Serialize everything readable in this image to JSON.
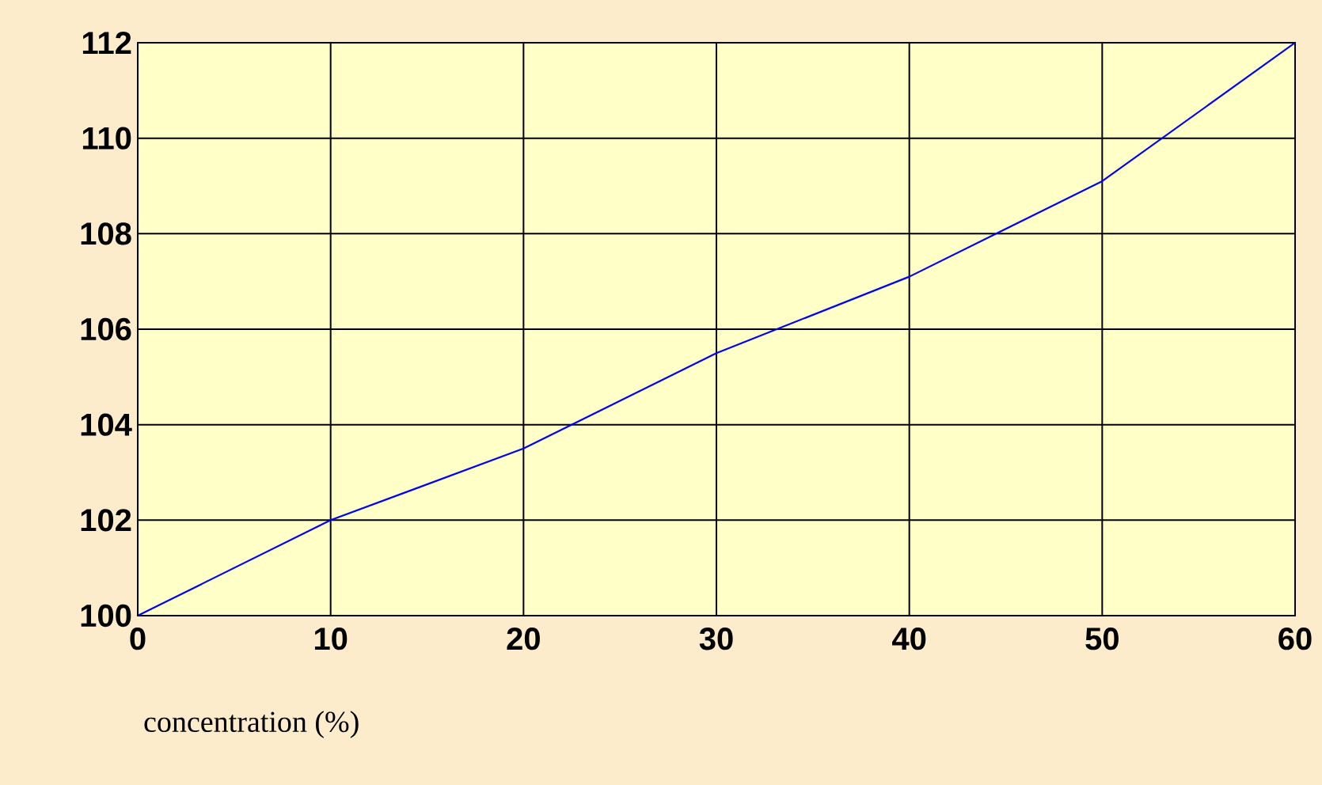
{
  "chart_data": {
    "type": "line",
    "xlabel": "concentration (%)",
    "x": [
      0,
      10,
      20,
      30,
      40,
      50,
      60
    ],
    "series": [
      {
        "color": "#0000ff",
        "values": [
          100,
          102,
          103.5,
          105.5,
          107.1,
          109.1,
          112
        ]
      }
    ],
    "xlim": [
      0,
      60
    ],
    "ylim": [
      100,
      112
    ],
    "xticks": [
      0,
      10,
      20,
      30,
      40,
      50,
      60
    ],
    "yticks": [
      100,
      102,
      104,
      106,
      108,
      110,
      112
    ],
    "grid": true,
    "marker": "none",
    "line_style": "solid"
  }
}
